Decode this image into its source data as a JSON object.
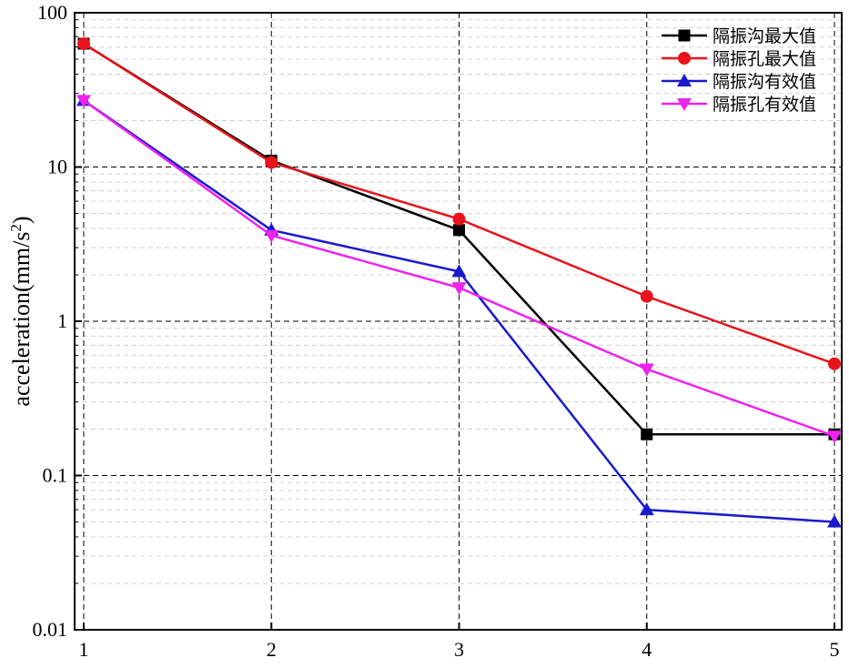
{
  "chart_data": {
    "type": "line",
    "title": "",
    "xlabel": "",
    "ylabel": "acceleration(mm/s²)",
    "ylabel_base": "acceleration(mm/s",
    "ylabel_sup": "2",
    "ylabel_close": ")",
    "x": [
      1,
      2,
      3,
      4,
      5
    ],
    "x_tick_labels": [
      "1",
      "2",
      "3",
      "4",
      "5"
    ],
    "y_scale": "log",
    "ylim": [
      0.01,
      100
    ],
    "y_tick_values": [
      0.01,
      0.1,
      1,
      10,
      100
    ],
    "y_tick_labels": [
      "0.01",
      "0.1",
      "1",
      "10",
      "100"
    ],
    "grid": true,
    "legend_position": "top-right",
    "series": [
      {
        "name": "隔振沟最大值",
        "color": "#000000",
        "marker": "square",
        "values": [
          63,
          11,
          3.9,
          0.185,
          0.185
        ]
      },
      {
        "name": "隔振孔最大值",
        "color": "#e8141b",
        "marker": "circle",
        "values": [
          63,
          10.7,
          4.6,
          1.45,
          0.53
        ]
      },
      {
        "name": "隔振沟有效值",
        "color": "#1a1acc",
        "marker": "triangle-up",
        "values": [
          27,
          3.9,
          2.1,
          0.06,
          0.05
        ]
      },
      {
        "name": "隔振孔有效值",
        "color": "#ee22ee",
        "marker": "triangle-down",
        "values": [
          27,
          3.6,
          1.65,
          0.49,
          0.18
        ]
      }
    ]
  }
}
